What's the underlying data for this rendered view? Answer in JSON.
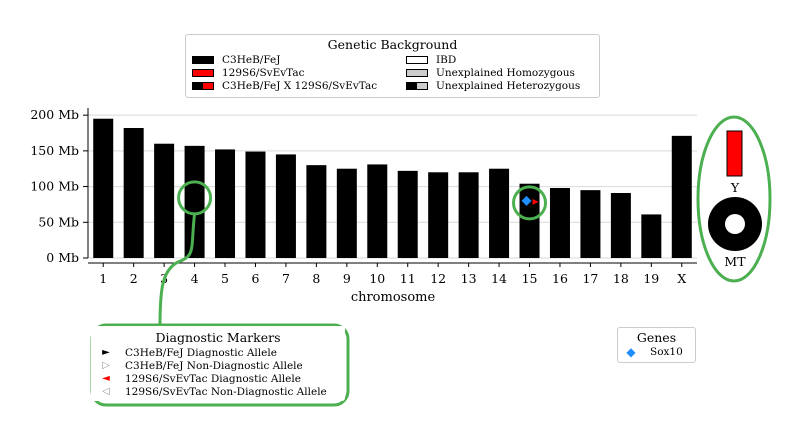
{
  "chart_data": {
    "type": "bar",
    "categories": [
      "1",
      "2",
      "3",
      "4",
      "5",
      "6",
      "7",
      "8",
      "9",
      "10",
      "11",
      "12",
      "13",
      "14",
      "15",
      "16",
      "17",
      "18",
      "19",
      "X"
    ],
    "values": [
      195,
      182,
      160,
      157,
      152,
      149,
      145,
      130,
      125,
      131,
      122,
      120,
      120,
      125,
      104,
      98,
      95,
      91,
      61,
      171
    ],
    "xlabel": "chromosome",
    "ylabel": "",
    "yticks": [
      "0 Mb",
      "50 Mb",
      "100 Mb",
      "150 Mb",
      "200 Mb"
    ],
    "ytick_values": [
      0,
      50,
      100,
      150,
      200
    ],
    "ylim": [
      0,
      210
    ],
    "grid": "horizontal",
    "bar_color": "#000000",
    "gene_marker": {
      "chromosome": "15",
      "position": 80,
      "label": "Sox10",
      "color": "#1f8fff"
    },
    "highlight_circles": [
      {
        "chromosome": "4",
        "position": 87
      },
      {
        "chromosome": "15",
        "position": 80
      }
    ],
    "sex_chromosomes": {
      "Y": "Y",
      "MT": "MT",
      "y_color": "#ff0000"
    }
  },
  "legend_background": {
    "title": "Genetic Background",
    "items": [
      {
        "label": "C3HeB/FeJ",
        "style": "black"
      },
      {
        "label": "129S6/SvEvTac",
        "style": "red"
      },
      {
        "label": "C3HeB/FeJ X 129S6/SvEvTac",
        "style": "blackred"
      },
      {
        "label": "IBD",
        "style": "white"
      },
      {
        "label": "Unexplained Homozygous",
        "style": "grey"
      },
      {
        "label": "Unexplained Heterozygous",
        "style": "blackgrey"
      }
    ]
  },
  "legend_markers": {
    "title": "Diagnostic Markers",
    "items": [
      {
        "label": "C3HeB/FeJ Diagnostic Allele",
        "glyph": "►",
        "color": "#000000"
      },
      {
        "label": "C3HeB/FeJ Non-Diagnostic Allele",
        "glyph": "▷",
        "color": "#999999"
      },
      {
        "label": "129S6/SvEvTac Diagnostic Allele",
        "glyph": "◄",
        "color": "#ff0000"
      },
      {
        "label": "129S6/SvEvTac Non-Diagnostic Allele",
        "glyph": "◁",
        "color": "#999999"
      }
    ]
  },
  "legend_genes": {
    "title": "Genes",
    "items": [
      {
        "label": "Sox10",
        "glyph": "◆",
        "color": "#1f8fff"
      }
    ]
  },
  "colors": {
    "annotation_green": "#4caf50"
  }
}
